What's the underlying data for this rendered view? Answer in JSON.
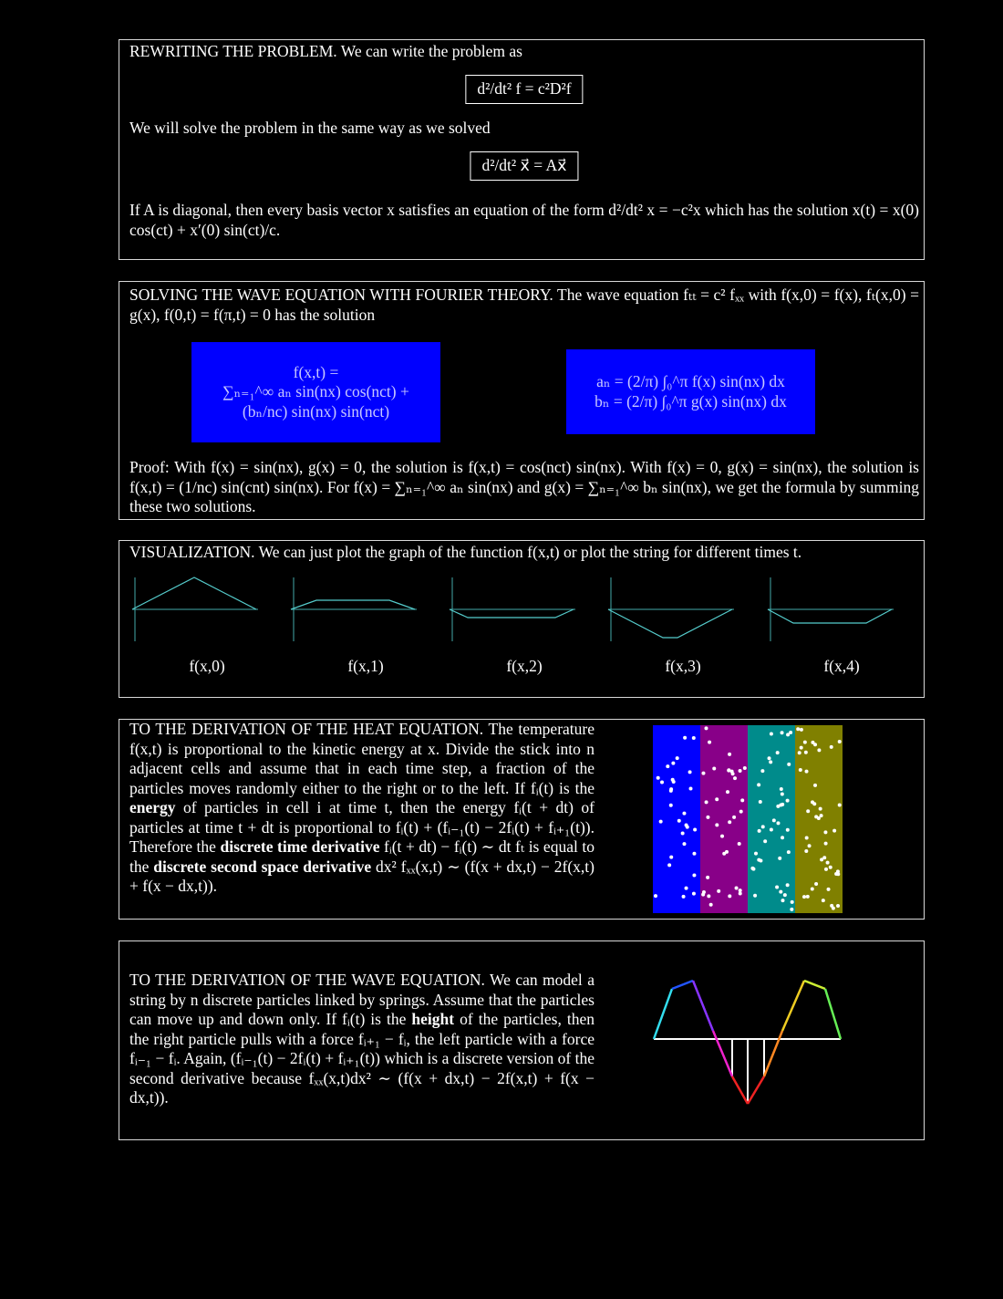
{
  "rewriting": {
    "paragraph_1": "REWRITING THE PROBLEM. We can write the problem as",
    "equation_1": "d²/dt² f = c²D²f",
    "paragraph_2": "We will solve the problem in the same way as we solved",
    "equation_2": "d²/dt² x⃗ = Ax⃗",
    "paragraph_3": "If A is diagonal, then every basis vector x satisfies an equation of the form d²/dt² x = −c²x which has the solution x(t) = x(0) cos(ct) + x′(0) sin(ct)/c."
  },
  "wave_solution": {
    "paragraph": "SOLVING THE WAVE EQUATION WITH FOURIER THEORY. The wave equation fₜₜ = c² fₓₓ with f(x,0) = f(x), fₜ(x,0) = g(x), f(0,t) = f(π,t) = 0 has the solution",
    "solution_box": [
      "f(x,t) =",
      "∑ₙ₌₁^∞ aₙ sin(nx) cos(nct) +",
      "(bₙ/nc) sin(nx) sin(nct)"
    ],
    "coefficient_box": [
      "aₙ = (2/π) ∫₀^π f(x) sin(nx) dx",
      "bₙ = (2/π) ∫₀^π g(x) sin(nx) dx"
    ],
    "proof": "Proof: With f(x) = sin(nx), g(x) = 0, the solution is f(x,t) = cos(nct) sin(nx). With f(x) = 0, g(x) = sin(nx), the solution is f(x,t) = (1/nc) sin(cnt) sin(nx). For f(x) = ∑ₙ₌₁^∞ aₙ sin(nx) and g(x) = ∑ₙ₌₁^∞ bₙ sin(nx), we get the formula by summing these two solutions."
  },
  "visualization": {
    "paragraph": "VISUALIZATION. We can just plot the graph of the function f(x,t) or plot the string for different times t.",
    "plot_labels": [
      "f(x,0)",
      "f(x,1)",
      "f(x,2)",
      "f(x,3)",
      "f(x,4)"
    ]
  },
  "heat": {
    "parts": [
      {
        "text": "TO THE DERIVATION OF THE HEAT EQUATION. The tem­perature f(x,t) is proportional to the kinetic energy at x. Di­vide the stick into n adjacent cells and assume that in each time step, a fraction of the particles moves randomly either to the right or to the left. If fᵢ(t) is the "
      },
      {
        "text": "energy",
        "bold": true
      },
      {
        "text": " of particles in cell i at time t, then the energy fᵢ(t + dt) of particles at time t + dt is proportional to fᵢ(t) + (fᵢ₋₁(t) − 2fᵢ(t) + fᵢ₊₁(t)). There­fore the "
      },
      {
        "text": "discrete time derivative",
        "bold": true
      },
      {
        "text": " fᵢ(t + dt) − fᵢ(t) ∼ dt fₜ is equal to the "
      },
      {
        "text": "discrete second space derivative",
        "bold": true
      },
      {
        "text": " dx² fₓₓ(x,t) ∼ (f(x + dx,t) − 2f(x,t) + f(x − dx,t))."
      }
    ]
  },
  "wave_derivation": {
    "parts": [
      {
        "text": "TO THE DERIVATION OF THE WAVE EQUATION. We can model a string by n discrete particles linked by springs. Assume that the particles can move up and down only. If fᵢ(t) is the "
      },
      {
        "text": "height",
        "bold": true
      },
      {
        "text": " of the particles, then the right particle pulls with a force fᵢ₊₁ − fᵢ, the left particle with a force fᵢ₋₁ − fᵢ. Again, (fᵢ₋₁(t) − 2fᵢ(t) + fᵢ₊₁(t)) which is a discrete version of the second derivative because fₓₓ(x,t)dx² ∼ (f(x + dx,t) − 2f(x,t) + f(x − dx,t))."
      }
    ]
  }
}
